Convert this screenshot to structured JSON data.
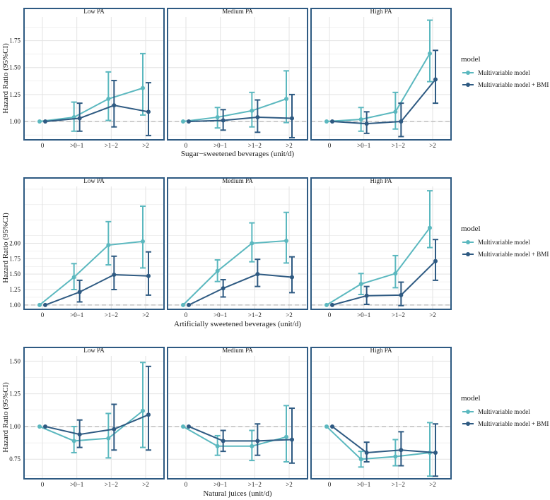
{
  "chart_data": [
    {
      "type": "line",
      "xlabel": "Sugar−sweetened beverages (unit/d)",
      "ylabel": "Hazard Ratio (95%CI)",
      "categories": [
        "0",
        ">0−1",
        ">1−2",
        ">2"
      ],
      "yticks": [
        "1.00",
        "1.25",
        "1.50",
        "1.75"
      ],
      "ytick_values": [
        1.0,
        1.25,
        1.5,
        1.75
      ],
      "ylim": [
        0.83,
        1.97
      ],
      "reference_line": 1.0,
      "legend": {
        "title": "model",
        "entries": [
          "Multivariable model",
          "Multivariable model + BMI"
        ]
      },
      "panels": [
        {
          "strip": "Low PA",
          "series": [
            {
              "name": "Multivariable model",
              "values": [
                1.0,
                1.04,
                1.21,
                1.31
              ],
              "lower": [
                1.0,
                0.91,
                1.01,
                1.06
              ],
              "upper": [
                1.0,
                1.18,
                1.46,
                1.63
              ]
            },
            {
              "name": "Multivariable model + BMI",
              "values": [
                1.0,
                1.03,
                1.15,
                1.09
              ],
              "lower": [
                1.0,
                0.91,
                0.95,
                0.87
              ],
              "upper": [
                1.0,
                1.17,
                1.38,
                1.36
              ]
            }
          ]
        },
        {
          "strip": "Medium PA",
          "series": [
            {
              "name": "Multivariable model",
              "values": [
                1.0,
                1.04,
                1.1,
                1.21
              ],
              "lower": [
                1.0,
                0.94,
                0.95,
                0.99
              ],
              "upper": [
                1.0,
                1.13,
                1.27,
                1.47
              ]
            },
            {
              "name": "Multivariable model + BMI",
              "values": [
                1.0,
                1.01,
                1.04,
                1.03
              ],
              "lower": [
                1.0,
                0.92,
                0.9,
                0.85
              ],
              "upper": [
                1.0,
                1.11,
                1.2,
                1.25
              ]
            }
          ]
        },
        {
          "strip": "High PA",
          "series": [
            {
              "name": "Multivariable model",
              "values": [
                1.0,
                1.02,
                1.09,
                1.63
              ],
              "lower": [
                1.0,
                0.91,
                0.93,
                1.37
              ],
              "upper": [
                1.0,
                1.13,
                1.27,
                1.94
              ]
            },
            {
              "name": "Multivariable model + BMI",
              "values": [
                1.0,
                0.98,
                1.0,
                1.39
              ],
              "lower": [
                1.0,
                0.89,
                0.86,
                1.17
              ],
              "upper": [
                1.0,
                1.09,
                1.17,
                1.66
              ]
            }
          ]
        }
      ]
    },
    {
      "type": "line",
      "xlabel": "Artificially sweetened beverages (unit/d)",
      "ylabel": "Hazard Ratio (95%CI)",
      "categories": [
        "0",
        ">0−1",
        ">1−2",
        ">2"
      ],
      "yticks": [
        "1.00",
        "1.25",
        "1.50",
        "1.75",
        "2.00"
      ],
      "ytick_values": [
        1.0,
        1.25,
        1.5,
        1.75,
        2.0
      ],
      "ylim": [
        0.93,
        2.92
      ],
      "reference_line": 1.0,
      "legend": {
        "title": "model",
        "entries": [
          "Multivariable model",
          "Multivariable model + BMI"
        ]
      },
      "panels": [
        {
          "strip": "Low PA",
          "series": [
            {
              "name": "Multivariable model",
              "values": [
                1.0,
                1.45,
                1.97,
                2.03
              ],
              "lower": [
                1.0,
                1.25,
                1.65,
                1.6
              ],
              "upper": [
                1.0,
                1.67,
                2.35,
                2.6
              ]
            },
            {
              "name": "Multivariable model + BMI",
              "values": [
                1.0,
                1.21,
                1.49,
                1.47
              ],
              "lower": [
                1.0,
                1.05,
                1.25,
                1.16
              ],
              "upper": [
                1.0,
                1.4,
                1.79,
                1.86
              ]
            }
          ]
        },
        {
          "strip": "Medium PA",
          "series": [
            {
              "name": "Multivariable model",
              "values": [
                1.0,
                1.55,
                2.0,
                2.04
              ],
              "lower": [
                1.0,
                1.38,
                1.7,
                1.68
              ],
              "upper": [
                1.0,
                1.73,
                2.33,
                2.5
              ]
            },
            {
              "name": "Multivariable model + BMI",
              "values": [
                1.0,
                1.27,
                1.5,
                1.45
              ],
              "lower": [
                1.0,
                1.13,
                1.3,
                1.2
              ],
              "upper": [
                1.0,
                1.41,
                1.74,
                1.78
              ]
            }
          ]
        },
        {
          "strip": "High PA",
          "series": [
            {
              "name": "Multivariable model",
              "values": [
                1.0,
                1.34,
                1.51,
                2.25
              ],
              "lower": [
                1.0,
                1.17,
                1.28,
                1.93
              ],
              "upper": [
                1.0,
                1.51,
                1.8,
                2.85
              ]
            },
            {
              "name": "Multivariable model + BMI",
              "values": [
                1.0,
                1.15,
                1.16,
                1.71
              ],
              "lower": [
                1.0,
                1.01,
                0.99,
                1.4
              ],
              "upper": [
                1.0,
                1.3,
                1.37,
                2.06
              ]
            }
          ]
        }
      ]
    },
    {
      "type": "line",
      "xlabel": "Natural juices (unit/d)",
      "ylabel": "Hazard Ratio (95%CI)",
      "categories": [
        "0",
        ">0−1",
        ">1−2",
        ">2"
      ],
      "yticks": [
        "0.75",
        "1.00",
        "1.25",
        "1.50"
      ],
      "ytick_values": [
        0.75,
        1.0,
        1.25,
        1.5
      ],
      "ylim": [
        0.6,
        1.54
      ],
      "reference_line": 1.0,
      "legend": {
        "title": "model",
        "entries": [
          "Multivariable model",
          "Multivariable model + BMI"
        ]
      },
      "panels": [
        {
          "strip": "Low PA",
          "series": [
            {
              "name": "Multivariable model",
              "values": [
                1.0,
                0.89,
                0.91,
                1.12
              ],
              "lower": [
                1.0,
                0.8,
                0.76,
                0.84
              ],
              "upper": [
                1.0,
                1.0,
                1.1,
                1.49
              ]
            },
            {
              "name": "Multivariable model + BMI",
              "values": [
                1.0,
                0.94,
                0.98,
                1.09
              ],
              "lower": [
                1.0,
                0.84,
                0.82,
                0.82
              ],
              "upper": [
                1.0,
                1.05,
                1.17,
                1.46
              ]
            }
          ]
        },
        {
          "strip": "Medium PA",
          "series": [
            {
              "name": "Multivariable model",
              "values": [
                1.0,
                0.85,
                0.85,
                0.92
              ],
              "lower": [
                1.0,
                0.78,
                0.74,
                0.73
              ],
              "upper": [
                1.0,
                0.93,
                0.97,
                1.16
              ]
            },
            {
              "name": "Multivariable model + BMI",
              "values": [
                1.0,
                0.89,
                0.89,
                0.9
              ],
              "lower": [
                1.0,
                0.81,
                0.78,
                0.72
              ],
              "upper": [
                1.0,
                0.97,
                1.02,
                1.14
              ]
            }
          ]
        },
        {
          "strip": "High PA",
          "series": [
            {
              "name": "Multivariable model",
              "values": [
                1.0,
                0.75,
                0.77,
                0.8
              ],
              "lower": [
                1.0,
                0.69,
                0.7,
                0.62
              ],
              "upper": [
                1.0,
                0.81,
                0.9,
                1.03
              ]
            },
            {
              "name": "Multivariable model + BMI",
              "values": [
                1.0,
                0.8,
                0.82,
                0.8
              ],
              "lower": [
                1.0,
                0.73,
                0.7,
                0.62
              ],
              "upper": [
                1.0,
                0.88,
                0.96,
                1.02
              ]
            }
          ]
        }
      ]
    }
  ],
  "colors": {
    "series1": "#5bb8bf",
    "series2": "#2e5a82",
    "frame": "#2e5a82",
    "grid": "#e3e3e3",
    "refline": "#c4c4c4"
  }
}
